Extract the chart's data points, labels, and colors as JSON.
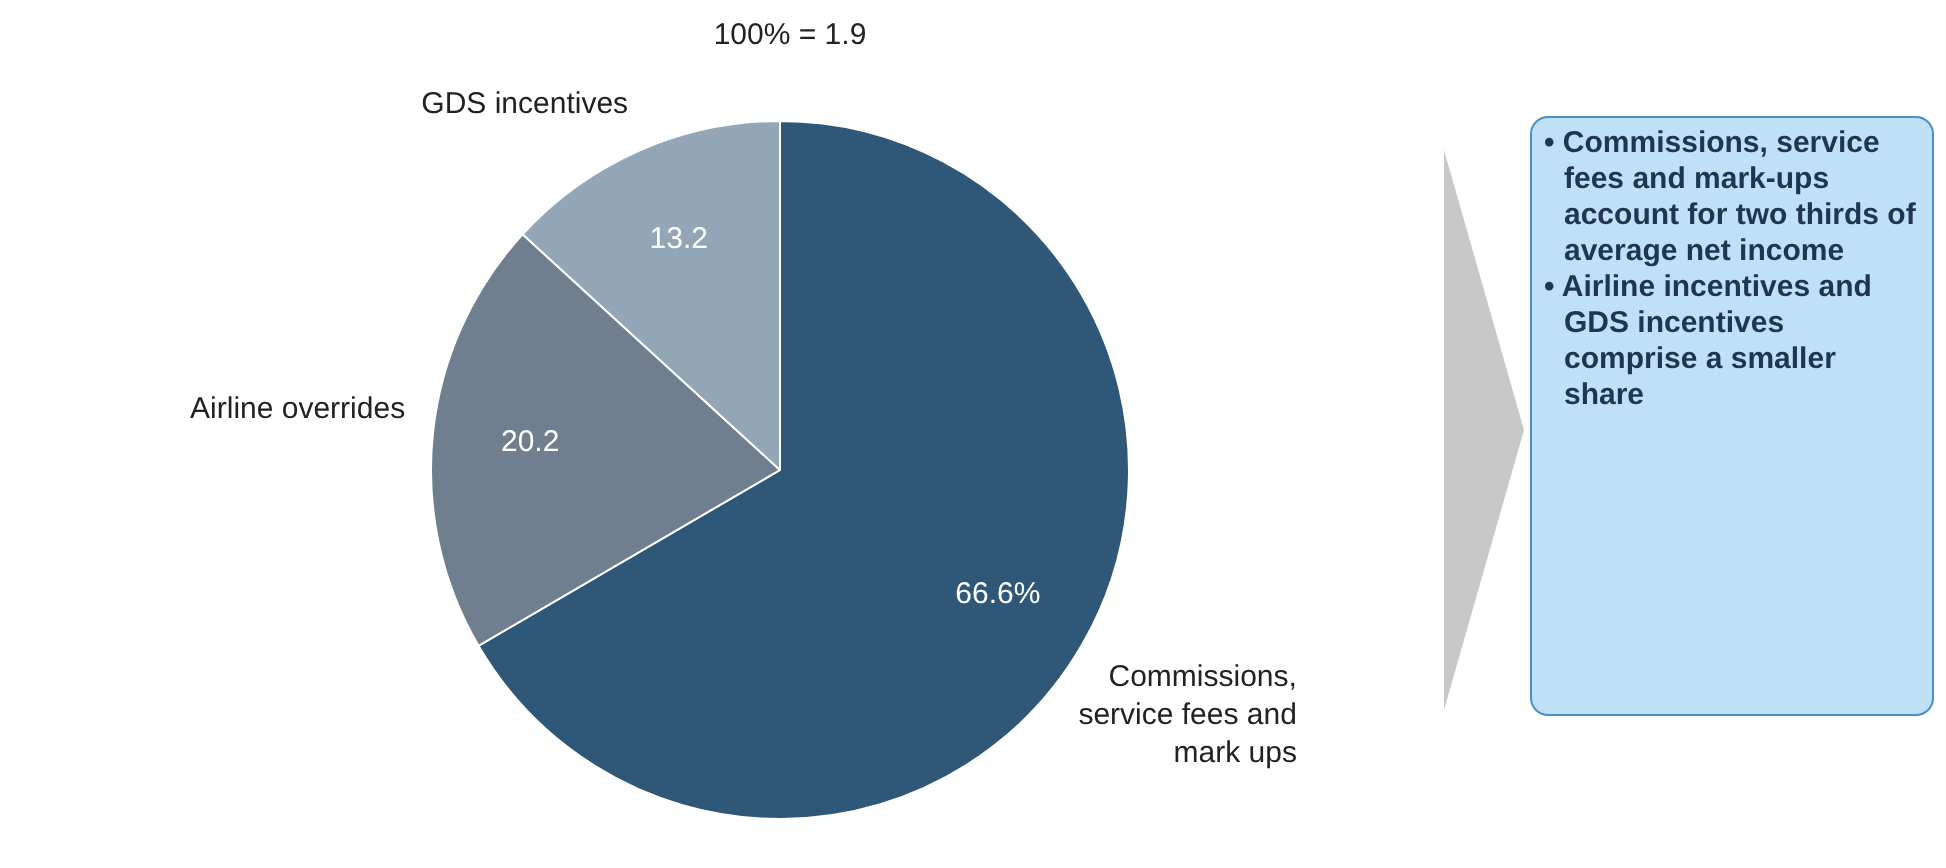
{
  "chart_data": {
    "type": "pie",
    "title": "100% = 1.9",
    "categories": [
      "Commissions, service fees and mark ups",
      "Airline overrides",
      "GDS incentives"
    ],
    "values": [
      66.6,
      20.2,
      13.2
    ],
    "colors": [
      "#2f5878",
      "#6f7f8f",
      "#93a6b8"
    ],
    "value_labels": [
      "66.6%",
      "20.2",
      "13.2"
    ],
    "legend": false,
    "annotations": [
      "• Commissions, service fees and mark-ups account for two thirds of average net income",
      "• Airline incentives and GDS incentives comprise a smaller share"
    ]
  }
}
